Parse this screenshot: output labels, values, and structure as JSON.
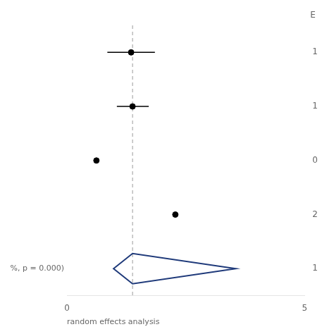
{
  "chart_data": {
    "type": "forest",
    "categories": [
      "1",
      "1",
      "0",
      "2",
      "1"
    ],
    "series": [
      {
        "marker": "circle",
        "color": "#000000",
        "values": [
          1.35,
          1.38,
          0.62,
          2.28,
          null
        ],
        "ci_low": [
          0.85,
          1.05,
          null,
          null,
          null
        ],
        "ci_high": [
          1.85,
          1.72,
          null,
          null,
          null
        ]
      },
      {
        "marker": "diamond",
        "color": "#1f3a7a",
        "values": [
          null,
          null,
          null,
          null,
          1.38
        ],
        "ci_low": [
          null,
          null,
          null,
          null,
          0.98
        ],
        "ci_high": [
          null,
          null,
          null,
          null,
          3.55
        ]
      }
    ],
    "reference_line": 1.38,
    "header": "E",
    "footnote_prefix": "%, p = 0.000)",
    "footnote": "random effects analysis",
    "xlim": [
      0,
      5
    ],
    "xticks": [
      0,
      5
    ],
    "grid": false
  }
}
